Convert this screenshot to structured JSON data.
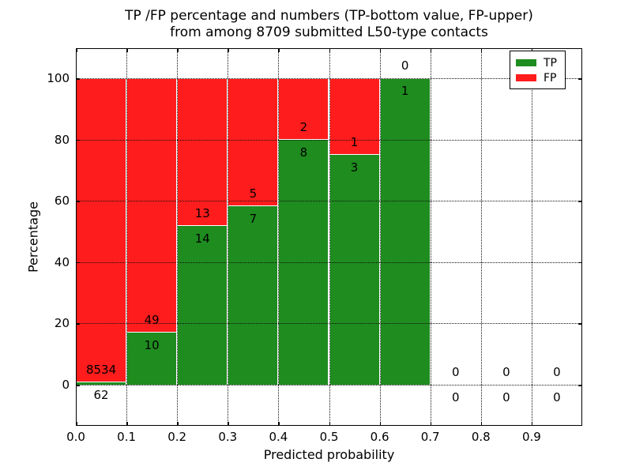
{
  "title": {
    "line1": "TP /FP percentage and numbers (TP-bottom value, FP-upper)",
    "line2": "from among 8709 submitted L50-type contacts"
  },
  "chart_data": {
    "type": "bar",
    "stacked": true,
    "note": "Stacked 100% bars; numeric annotations are raw counts: TP count below segment boundary, FP count above it",
    "total_submitted": "8709",
    "bin_starts": [
      0.0,
      0.1,
      0.2,
      0.3,
      0.4,
      0.5,
      0.6,
      0.7,
      0.8,
      0.9
    ],
    "bin_width": 0.1,
    "series": [
      {
        "name": "TP",
        "color": "#1e8c1e",
        "values": [
          62,
          10,
          14,
          7,
          8,
          3,
          1,
          0,
          0,
          0
        ]
      },
      {
        "name": "FP",
        "color": "#ff1c1c",
        "values": [
          8534,
          49,
          13,
          5,
          2,
          1,
          0,
          0,
          0,
          0
        ]
      }
    ],
    "xlabel": "Predicted probability",
    "ylabel": "Percentage",
    "x_ticks": [
      "0.0",
      "0.1",
      "0.2",
      "0.3",
      "0.4",
      "0.5",
      "0.6",
      "0.7",
      "0.8",
      "0.9"
    ],
    "y_ticks": [
      "0",
      "20",
      "40",
      "60",
      "80",
      "100"
    ],
    "xlim": [
      0.0,
      1.0
    ],
    "ylim": [
      -13.4,
      109.8
    ],
    "grid": true,
    "grid_style": "dotted",
    "bar_edge_color": "#ffffff",
    "legend": {
      "position": "upper right",
      "entries": [
        {
          "label": "TP",
          "color": "#1e8c1e"
        },
        {
          "label": "FP",
          "color": "#ff1c1c"
        }
      ]
    }
  }
}
